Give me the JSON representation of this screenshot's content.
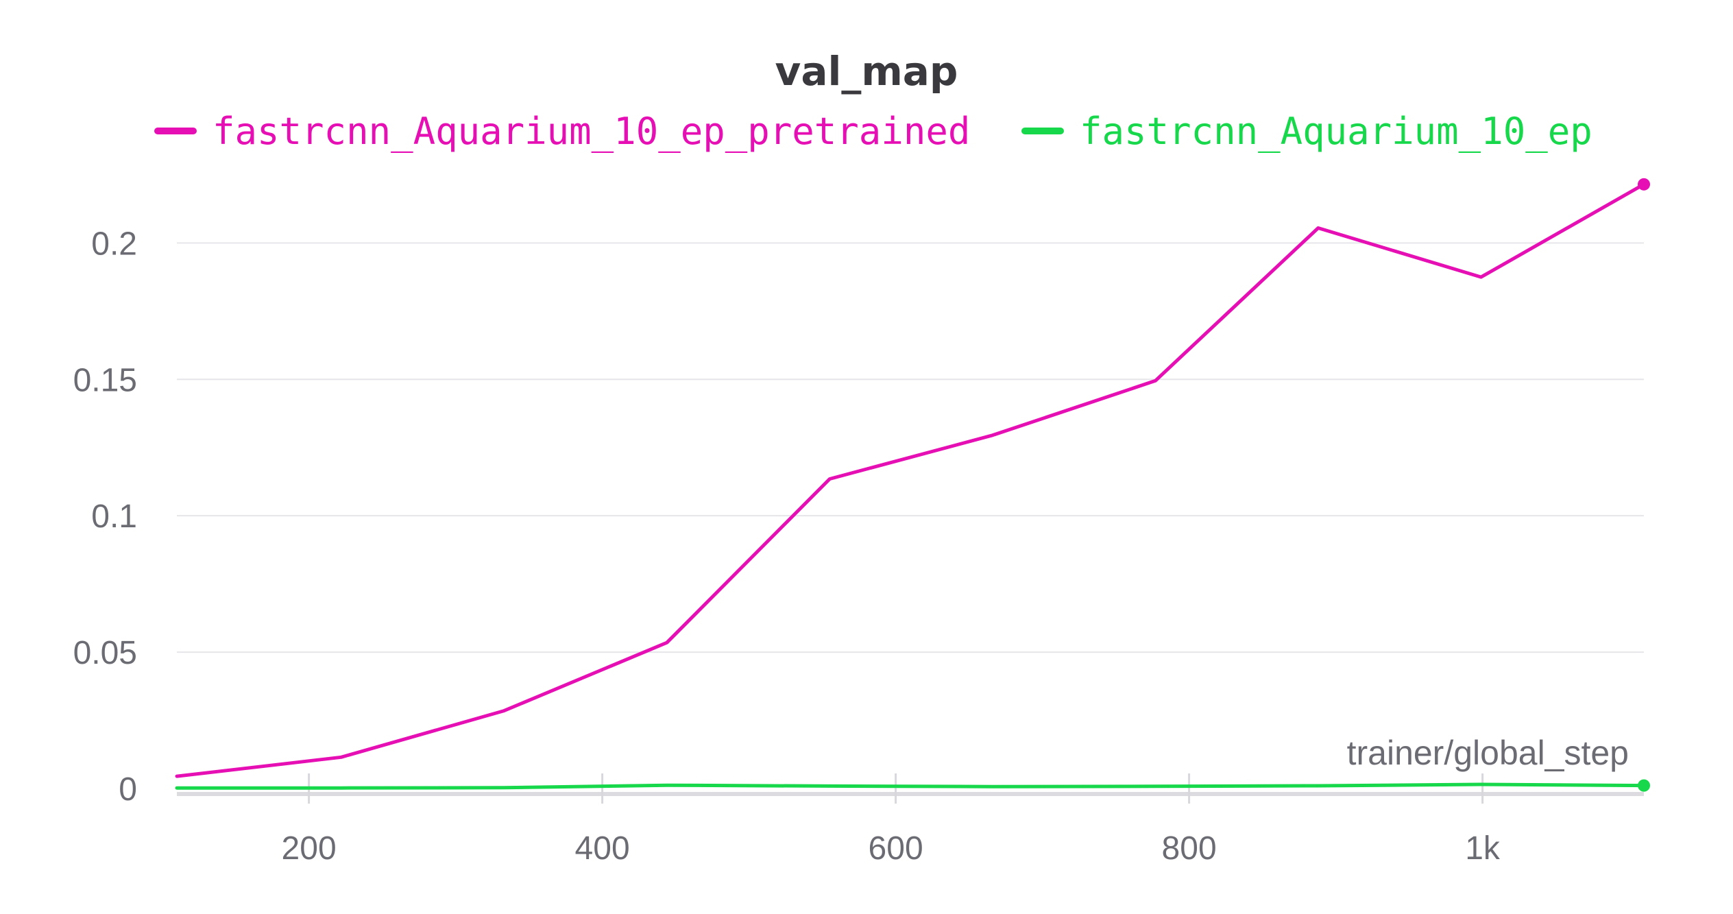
{
  "chart_data": {
    "type": "line",
    "title": "val_map",
    "xlabel": "trainer/global_step",
    "ylabel": "",
    "xlim": [
      110,
      1110
    ],
    "ylim": [
      0,
      0.23
    ],
    "x_ticks": [
      200,
      400,
      600,
      800,
      1000
    ],
    "x_tick_labels": [
      "200",
      "400",
      "600",
      "800",
      "1k"
    ],
    "y_ticks": [
      0,
      0.05,
      0.1,
      0.15,
      0.2
    ],
    "y_tick_labels": [
      "0",
      "0.05",
      "0.1",
      "0.15",
      "0.2"
    ],
    "grid": true,
    "legend_position": "top",
    "series": [
      {
        "name": "fastrcnn_Aquarium_10_ep_pretrained",
        "color": "#e60fb4",
        "x": [
          110,
          222,
          333,
          444,
          555,
          666,
          777,
          888,
          999,
          1110
        ],
        "y": [
          0.0045,
          0.0115,
          0.0285,
          0.0535,
          0.1135,
          0.1295,
          0.1495,
          0.2055,
          0.1875,
          0.2215
        ]
      },
      {
        "name": "fastrcnn_Aquarium_10_ep",
        "color": "#16d84a",
        "x": [
          110,
          222,
          333,
          444,
          555,
          666,
          777,
          888,
          999,
          1110
        ],
        "y": [
          0.0002,
          0.0002,
          0.0003,
          0.0012,
          0.0009,
          0.0007,
          0.0008,
          0.001,
          0.0015,
          0.0011
        ]
      }
    ]
  }
}
